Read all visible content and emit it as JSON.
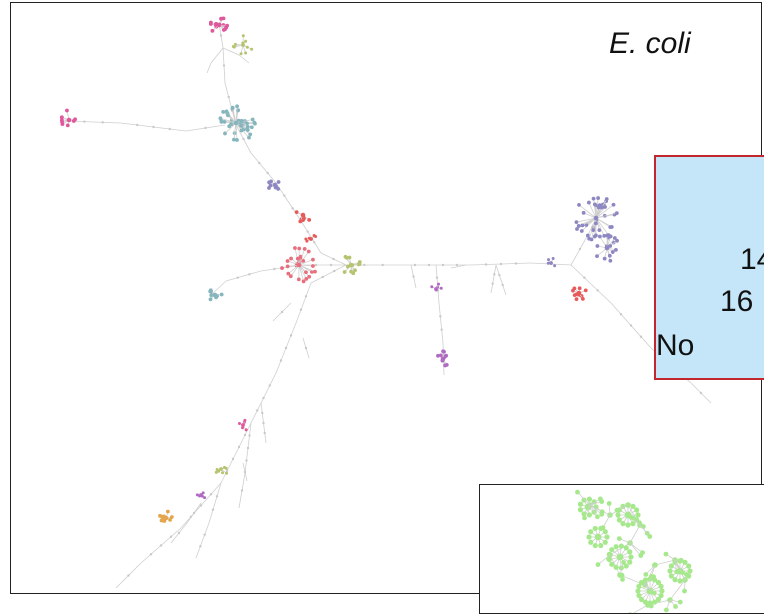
{
  "title": "E. coli",
  "info_box": {
    "lines": [
      "14",
      "16",
      "No "
    ]
  },
  "colors": {
    "edge": "#cfcfcf",
    "node_grey": "#c9c9c9",
    "pink": "#e0579c",
    "teal": "#86b6bd",
    "salmon": "#e8707e",
    "olive": "#b5c46f",
    "lavender": "#8e88c2",
    "purple": "#b06ac2",
    "orange": "#e3a64e",
    "red": "#e85a5a",
    "green": "#a6e88c",
    "info_bg": "#c5e6f9",
    "info_border": "#c1272d"
  }
}
